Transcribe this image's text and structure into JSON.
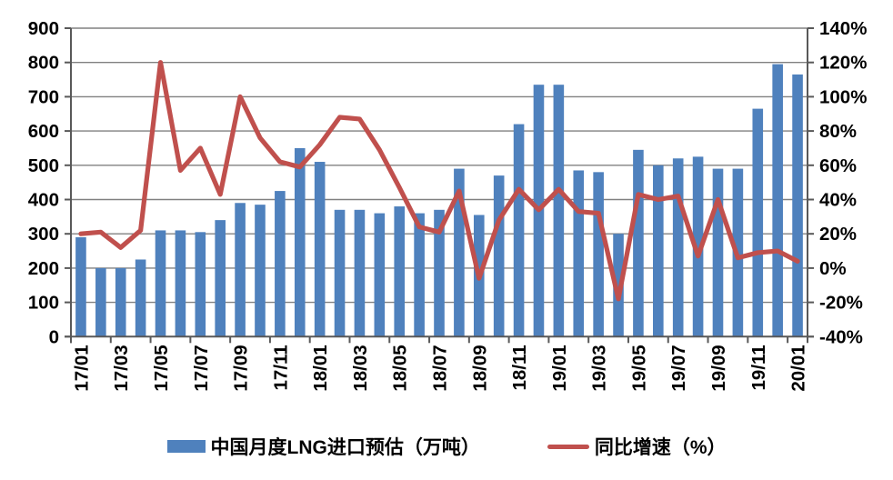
{
  "chart_data": {
    "type": "bar+line",
    "title": "",
    "categories": [
      "17/01",
      "17/02",
      "17/03",
      "17/04",
      "17/05",
      "17/06",
      "17/07",
      "17/08",
      "17/09",
      "17/10",
      "17/11",
      "17/12",
      "18/01",
      "18/02",
      "18/03",
      "18/04",
      "18/05",
      "18/06",
      "18/07",
      "18/08",
      "18/09",
      "18/10",
      "18/11",
      "18/12",
      "19/01",
      "19/02",
      "19/03",
      "19/04",
      "19/05",
      "19/06",
      "19/07",
      "19/08",
      "19/09",
      "19/10",
      "19/11",
      "19/12",
      "20/01"
    ],
    "x_tick_labels": [
      "17/01",
      "17/03",
      "17/05",
      "17/07",
      "17/09",
      "17/11",
      "18/01",
      "18/03",
      "18/05",
      "18/07",
      "18/09",
      "18/11",
      "19/01",
      "19/03",
      "19/05",
      "19/07",
      "19/09",
      "19/11",
      "20/01"
    ],
    "series": [
      {
        "name": "中国月度LNG进口预估（万吨）",
        "type": "bar",
        "axis": "left",
        "color": "#4F81BD",
        "values": [
          290,
          200,
          200,
          225,
          310,
          310,
          305,
          340,
          390,
          385,
          425,
          550,
          510,
          370,
          370,
          360,
          380,
          360,
          370,
          490,
          355,
          470,
          620,
          735,
          735,
          485,
          480,
          300,
          545,
          500,
          520,
          525,
          490,
          490,
          665,
          795,
          765
        ]
      },
      {
        "name": "同比增速（%）",
        "type": "line",
        "axis": "right",
        "color": "#C0504D",
        "values": [
          20,
          21,
          12,
          22,
          120,
          57,
          70,
          43,
          100,
          76,
          62,
          59,
          72,
          88,
          87,
          69,
          47,
          24,
          21,
          45,
          -6,
          28,
          46,
          34,
          46,
          33,
          32,
          -18,
          43,
          40,
          42,
          7,
          40,
          6,
          9,
          10,
          4
        ]
      }
    ],
    "left_axis": {
      "min": 0,
      "max": 900,
      "step": 100,
      "tick_labels": [
        "0",
        "100",
        "200",
        "300",
        "400",
        "500",
        "600",
        "700",
        "800",
        "900"
      ]
    },
    "right_axis": {
      "min": -40,
      "max": 140,
      "step": 20,
      "tick_labels": [
        "-40%",
        "-20%",
        "0%",
        "20%",
        "40%",
        "60%",
        "80%",
        "100%",
        "120%",
        "140%"
      ]
    },
    "grid": true,
    "legend_position": "bottom"
  },
  "legend": {
    "bar_label": "中国月度LNG进口预估（万吨）",
    "line_label": "同比增速（%）"
  },
  "colors": {
    "bar": "#4F81BD",
    "line": "#C0504D",
    "gridline": "#808080",
    "axis": "#595959",
    "text": "#000000",
    "background": "#FFFFFF"
  }
}
